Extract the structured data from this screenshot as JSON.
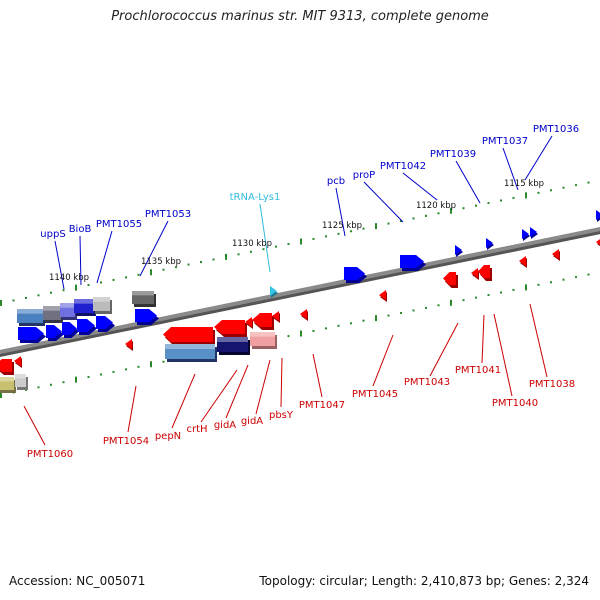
{
  "title": "Prochlorococcus marinus str. MIT 9313, complete genome",
  "footer": {
    "accession": "Accession: NC_005071",
    "topology": "Topology: circular; Length: 2,410,873 bp; Genes: 2,324"
  },
  "colors": {
    "forward_strand": "#0000ff",
    "reverse_strand": "#ff0000",
    "rna": "#33c4e6",
    "label_forward": "#0000cc",
    "label_reverse": "#cc0000",
    "label_rna": "#33bbdd",
    "tick": "#2a8a2a",
    "backbone": "#8a8a8a"
  },
  "scale_labels": [
    "1115 kbp",
    "1120 kbp",
    "1125 kbp",
    "1130 kbp",
    "1135 kbp",
    "1140 kbp"
  ],
  "gene_labels_top": [
    {
      "text": "PMT1036",
      "color": "forward"
    },
    {
      "text": "PMT1037",
      "color": "forward"
    },
    {
      "text": "PMT1039",
      "color": "forward"
    },
    {
      "text": "PMT1042",
      "color": "forward"
    },
    {
      "text": "proP",
      "color": "forward"
    },
    {
      "text": "pcb",
      "color": "forward"
    },
    {
      "text": "tRNA-Lys1",
      "color": "rna"
    },
    {
      "text": "PMT1053",
      "color": "forward"
    },
    {
      "text": "PMT1055",
      "color": "forward"
    },
    {
      "text": "BioB",
      "color": "forward"
    },
    {
      "text": "uppS",
      "color": "forward"
    }
  ],
  "gene_labels_bottom": [
    {
      "text": "PMT1038",
      "color": "reverse"
    },
    {
      "text": "PMT1040",
      "color": "reverse"
    },
    {
      "text": "PMT1041",
      "color": "reverse"
    },
    {
      "text": "PMT1043",
      "color": "reverse"
    },
    {
      "text": "PMT1045",
      "color": "reverse"
    },
    {
      "text": "PMT1047",
      "color": "reverse"
    },
    {
      "text": "pbsY",
      "color": "reverse"
    },
    {
      "text": "gidA",
      "color": "reverse"
    },
    {
      "text": "gidA",
      "color": "reverse"
    },
    {
      "text": "crtH",
      "color": "reverse"
    },
    {
      "text": "pepN",
      "color": "reverse"
    },
    {
      "text": "PMT1054",
      "color": "reverse"
    },
    {
      "text": "PMT1060",
      "color": "reverse"
    }
  ]
}
